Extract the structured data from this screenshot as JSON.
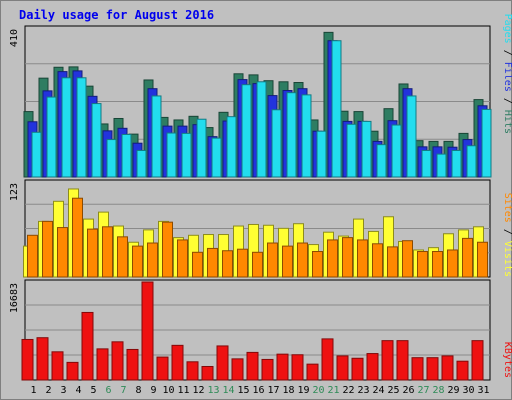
{
  "title": "Daily usage for August 2016",
  "colors": {
    "hits": "#2e7d62",
    "files": "#2233dd",
    "pages": "#22ddee",
    "visits": "#ffff33",
    "sites": "#ff8800",
    "kbytes": "#ee1111",
    "weekend_label": "#2e8b57",
    "weekday_label": "#000000",
    "title": "#0000ee"
  },
  "panel_labels": {
    "pages": "Pages",
    "files": "Files",
    "hits": "Hits",
    "sites": "Sites",
    "visits": "Visits",
    "kbytes": "KBytes",
    "sep": " / "
  },
  "chart_data": [
    {
      "type": "bar",
      "panel": "top",
      "ymax_label": "410",
      "ylim": [
        0,
        410
      ],
      "categories": [
        "1",
        "2",
        "3",
        "4",
        "5",
        "6",
        "7",
        "8",
        "9",
        "10",
        "11",
        "12",
        "13",
        "14",
        "15",
        "16",
        "17",
        "18",
        "19",
        "20",
        "21",
        "22",
        "23",
        "24",
        "25",
        "26",
        "27",
        "28",
        "29",
        "30",
        "31"
      ],
      "weekend": [
        6,
        7,
        13,
        14,
        20,
        21,
        27,
        28
      ],
      "series": [
        {
          "name": "Hits",
          "values": [
            180,
            272,
            302,
            303,
            250,
            146,
            161,
            118,
            267,
            164,
            157,
            167,
            136,
            178,
            284,
            281,
            265,
            262,
            260,
            157,
            398,
            181,
            180,
            126,
            188,
            256,
            100,
            98,
            98,
            120,
            213
          ]
        },
        {
          "name": "Files",
          "values": [
            152,
            237,
            290,
            292,
            222,
            127,
            134,
            93,
            243,
            140,
            140,
            144,
            111,
            154,
            268,
            257,
            224,
            238,
            243,
            126,
            375,
            153,
            153,
            98,
            155,
            243,
            83,
            83,
            82,
            103,
            196
          ]
        },
        {
          "name": "Pages",
          "values": [
            123,
            220,
            273,
            273,
            202,
            103,
            117,
            73,
            223,
            121,
            120,
            159,
            107,
            166,
            254,
            262,
            185,
            232,
            226,
            126,
            375,
            145,
            153,
            89,
            143,
            223,
            73,
            63,
            73,
            86,
            186
          ]
        }
      ]
    },
    {
      "type": "bar",
      "panel": "middle",
      "ymax_label": "123",
      "ylim": [
        0,
        123
      ],
      "categories": [
        "1",
        "2",
        "3",
        "4",
        "5",
        "6",
        "7",
        "8",
        "9",
        "10",
        "11",
        "12",
        "13",
        "14",
        "15",
        "16",
        "17",
        "18",
        "19",
        "20",
        "21",
        "22",
        "23",
        "24",
        "25",
        "26",
        "27",
        "28",
        "29",
        "30",
        "31"
      ],
      "weekend": [
        6,
        7,
        13,
        14,
        20,
        21,
        27,
        28
      ],
      "series": [
        {
          "name": "Visits",
          "values": [
            40,
            72,
            98,
            114,
            75,
            84,
            66,
            45,
            61,
            72,
            51,
            54,
            55,
            55,
            66,
            68,
            67,
            63,
            69,
            42,
            58,
            53,
            75,
            59,
            78,
            46,
            35,
            38,
            56,
            61,
            65
          ]
        },
        {
          "name": "Sites",
          "values": [
            54,
            72,
            64,
            102,
            62,
            65,
            52,
            40,
            44,
            71,
            48,
            32,
            37,
            34,
            36,
            32,
            44,
            40,
            44,
            33,
            48,
            51,
            48,
            43,
            39,
            47,
            33,
            33,
            35,
            50,
            45
          ]
        }
      ]
    },
    {
      "type": "bar",
      "panel": "bottom",
      "ymax_label": "16683",
      "ylim": [
        0,
        16683
      ],
      "categories": [
        "1",
        "2",
        "3",
        "4",
        "5",
        "6",
        "7",
        "8",
        "9",
        "10",
        "11",
        "12",
        "13",
        "14",
        "15",
        "16",
        "17",
        "18",
        "19",
        "20",
        "21",
        "22",
        "23",
        "24",
        "25",
        "26",
        "27",
        "28",
        "29",
        "30",
        "31"
      ],
      "weekend": [
        6,
        7,
        13,
        14,
        20,
        21,
        27,
        28
      ],
      "series": [
        {
          "name": "KBytes",
          "values": [
            6900,
            7200,
            4800,
            3000,
            11500,
            5300,
            6500,
            5200,
            16683,
            3900,
            5900,
            3100,
            2300,
            5800,
            3600,
            4700,
            3500,
            4400,
            4300,
            2700,
            7000,
            4100,
            3700,
            4500,
            6700,
            6700,
            3800,
            3800,
            4100,
            3200,
            6700
          ]
        }
      ]
    }
  ]
}
